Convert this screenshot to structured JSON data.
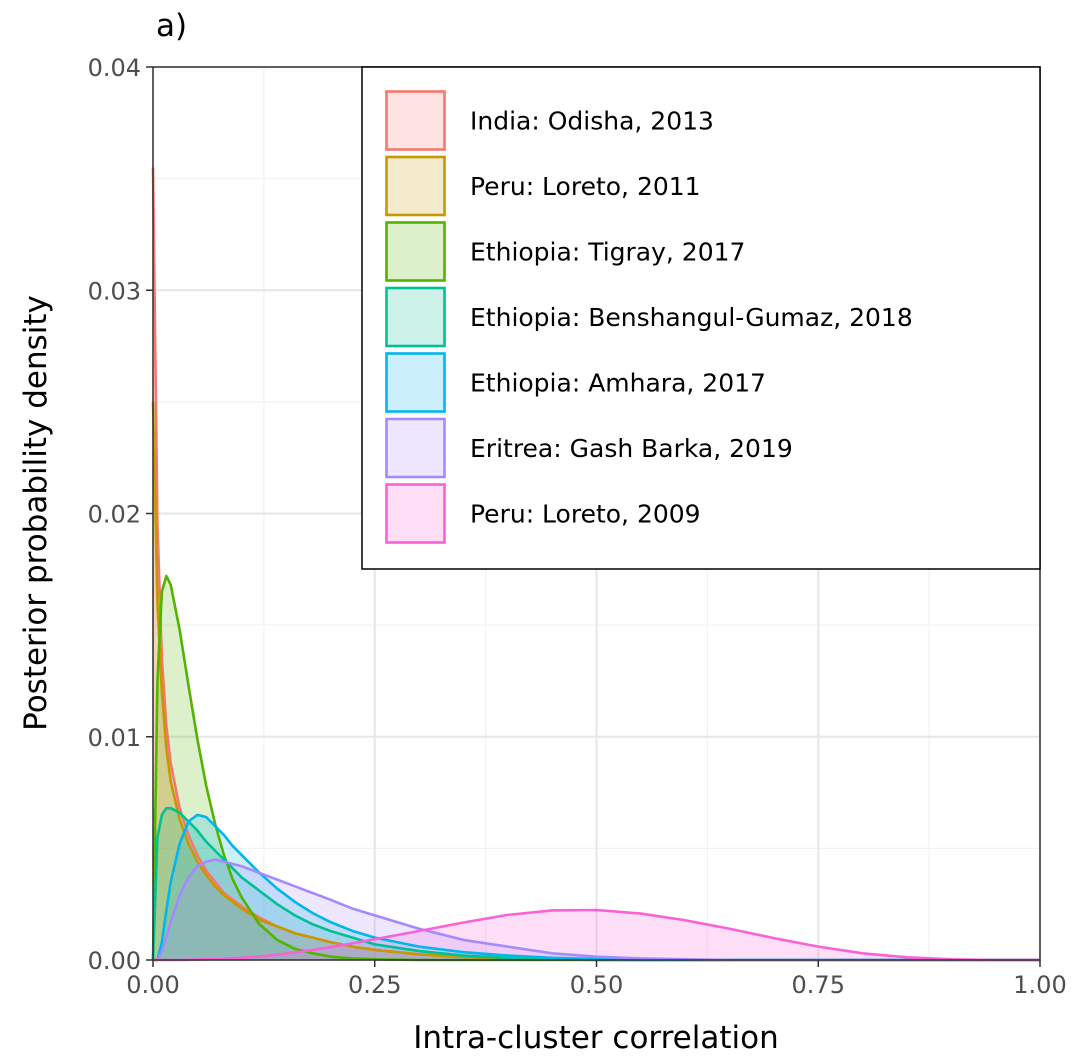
{
  "panel_label": "a)",
  "chart_data": {
    "type": "area",
    "title": "",
    "xlabel": "Intra-cluster correlation",
    "ylabel": "Posterior probability density",
    "xlim": [
      0,
      1
    ],
    "ylim": [
      0,
      0.04
    ],
    "x_ticks": [
      "0.00",
      "0.25",
      "0.50",
      "0.75",
      "1.00"
    ],
    "x_tick_values": [
      0,
      0.25,
      0.5,
      0.75,
      1.0
    ],
    "y_ticks": [
      "0.00",
      "0.01",
      "0.02",
      "0.03",
      "0.04"
    ],
    "y_tick_values": [
      0,
      0.01,
      0.02,
      0.03,
      0.04
    ],
    "grid": true,
    "legend_position": "top-right",
    "x": [
      0.0,
      0.005,
      0.01,
      0.015,
      0.02,
      0.03,
      0.04,
      0.05,
      0.06,
      0.07,
      0.08,
      0.09,
      0.1,
      0.12,
      0.14,
      0.16,
      0.18,
      0.2,
      0.225,
      0.25,
      0.3,
      0.35,
      0.4,
      0.45,
      0.5,
      0.55,
      0.6,
      0.65,
      0.7,
      0.75,
      0.8,
      0.85,
      0.9,
      0.95,
      1.0
    ],
    "series": [
      {
        "name": "India: Odisha, 2013",
        "color": "#F8766D",
        "values": [
          0.0355,
          0.0195,
          0.0135,
          0.0105,
          0.0088,
          0.0068,
          0.0056,
          0.0047,
          0.004,
          0.0035,
          0.003,
          0.0027,
          0.0024,
          0.0019,
          0.0015,
          0.0012,
          0.001,
          0.0008,
          0.0006,
          0.00045,
          0.00026,
          0.00014,
          7e-05,
          3e-05,
          1e-05,
          0,
          0,
          0,
          0,
          0,
          0,
          0,
          0,
          0,
          0
        ]
      },
      {
        "name": "Peru: Loreto, 2011",
        "color": "#C49A00",
        "values": [
          0.025,
          0.016,
          0.012,
          0.0095,
          0.008,
          0.0063,
          0.0052,
          0.0044,
          0.0038,
          0.0033,
          0.0029,
          0.0026,
          0.0023,
          0.0018,
          0.0015,
          0.0012,
          0.001,
          0.0008,
          0.0006,
          0.00045,
          0.00025,
          0.00013,
          6e-05,
          2e-05,
          1e-05,
          0,
          0,
          0,
          0,
          0,
          0,
          0,
          0,
          0,
          0
        ]
      },
      {
        "name": "Ethiopia: Tigray, 2017",
        "color": "#53B400",
        "values": [
          0.0,
          0.0125,
          0.0165,
          0.0172,
          0.0168,
          0.0148,
          0.0123,
          0.0099,
          0.0078,
          0.0061,
          0.0047,
          0.0036,
          0.0028,
          0.0016,
          0.0009,
          0.0005,
          0.0003,
          0.00015,
          7e-05,
          3e-05,
          0,
          0,
          0,
          0,
          0,
          0,
          0,
          0,
          0,
          0,
          0,
          0,
          0,
          0,
          0
        ]
      },
      {
        "name": "Ethiopia: Benshangul-Gumaz, 2018",
        "color": "#00C094",
        "values": [
          0.0,
          0.0055,
          0.0065,
          0.0068,
          0.0068,
          0.0066,
          0.0062,
          0.0058,
          0.0053,
          0.0049,
          0.0045,
          0.0041,
          0.0037,
          0.0031,
          0.0025,
          0.002,
          0.0016,
          0.0013,
          0.001,
          0.0007,
          0.0004,
          0.0002,
          0.0001,
          5e-05,
          2e-05,
          0,
          0,
          0,
          0,
          0,
          0,
          0,
          0,
          0,
          0
        ]
      },
      {
        "name": "Ethiopia: Amhara, 2017",
        "color": "#00B6EB",
        "values": [
          0.0,
          0.0,
          0.0008,
          0.0022,
          0.0035,
          0.0052,
          0.0062,
          0.0065,
          0.0064,
          0.006,
          0.0056,
          0.0051,
          0.0047,
          0.0039,
          0.0032,
          0.0026,
          0.0021,
          0.0017,
          0.0013,
          0.001,
          0.0006,
          0.00035,
          0.0002,
          0.0001,
          5e-05,
          2e-05,
          0,
          0,
          0,
          0,
          0,
          0,
          0,
          0,
          0
        ]
      },
      {
        "name": "Eritrea: Gash Barka, 2019",
        "color": "#A58AFF",
        "values": [
          0.0,
          0.0,
          0.0004,
          0.001,
          0.0017,
          0.0029,
          0.0037,
          0.0042,
          0.0044,
          0.0045,
          0.0044,
          0.0043,
          0.0042,
          0.0039,
          0.0036,
          0.0033,
          0.003,
          0.0027,
          0.0023,
          0.002,
          0.0014,
          0.0009,
          0.0006,
          0.0003,
          0.00015,
          7e-05,
          3e-05,
          0,
          0,
          0,
          0,
          0,
          0,
          0,
          0
        ]
      },
      {
        "name": "Peru: Loreto, 2009",
        "color": "#FB61D7",
        "values": [
          0.0,
          0.0,
          0.0,
          0.0,
          0.0,
          0.0,
          1e-05,
          2e-05,
          3e-05,
          4e-05,
          6e-05,
          8e-05,
          0.0001,
          0.00016,
          0.00024,
          0.00034,
          0.00045,
          0.00058,
          0.00075,
          0.00093,
          0.0013,
          0.00168,
          0.00202,
          0.00222,
          0.00224,
          0.00208,
          0.00178,
          0.0014,
          0.00098,
          0.0006,
          0.0003,
          0.00012,
          3e-05,
          0.0,
          0.0
        ]
      }
    ]
  }
}
